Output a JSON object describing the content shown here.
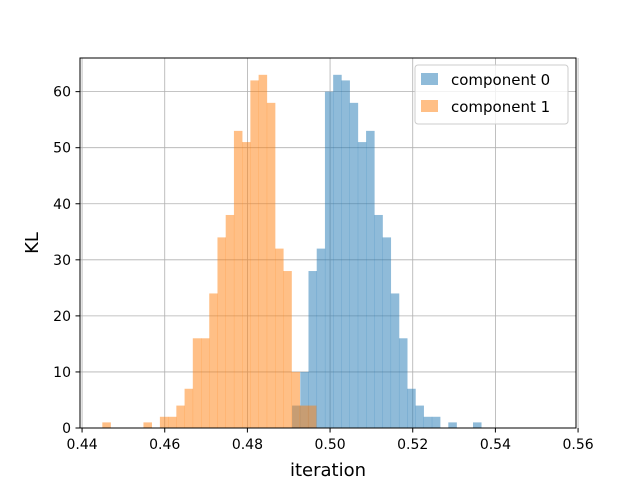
{
  "chart_data": {
    "type": "histogram",
    "xlabel": "iteration",
    "ylabel": "KL",
    "xlim": [
      0.4395,
      0.5595
    ],
    "ylim": [
      0,
      66
    ],
    "xticks": [
      {
        "value": 0.44,
        "label": "0.44"
      },
      {
        "value": 0.46,
        "label": "0.46"
      },
      {
        "value": 0.48,
        "label": "0.48"
      },
      {
        "value": 0.5,
        "label": "0.50"
      },
      {
        "value": 0.52,
        "label": "0.52"
      },
      {
        "value": 0.54,
        "label": "0.54"
      },
      {
        "value": 0.56,
        "label": "0.56"
      }
    ],
    "yticks": [
      {
        "value": 0,
        "label": "0"
      },
      {
        "value": 10,
        "label": "10"
      },
      {
        "value": 20,
        "label": "20"
      },
      {
        "value": 30,
        "label": "30"
      },
      {
        "value": 40,
        "label": "40"
      },
      {
        "value": 50,
        "label": "50"
      },
      {
        "value": 60,
        "label": "60"
      }
    ],
    "grid": true,
    "legend_position": "top-right",
    "series": [
      {
        "name": "component 0",
        "color": "#1f77b4",
        "opacity": 0.5,
        "bin_start": 0.4908,
        "bin_width": 0.00199,
        "counts": [
          4,
          10,
          28,
          32,
          60,
          63,
          62,
          58,
          51,
          53,
          38,
          34,
          24,
          16,
          7,
          4,
          2,
          2,
          0,
          1,
          0,
          0,
          1
        ]
      },
      {
        "name": "component 1",
        "color": "#ff7f0e",
        "opacity": 0.5,
        "bin_start": 0.4449,
        "bin_width": 0.00199,
        "counts": [
          1,
          0,
          0,
          0,
          0,
          1,
          0,
          2,
          2,
          4,
          7,
          16,
          16,
          24,
          34,
          38,
          53,
          51,
          62,
          63,
          58,
          32,
          28,
          10,
          4,
          4
        ]
      }
    ]
  }
}
